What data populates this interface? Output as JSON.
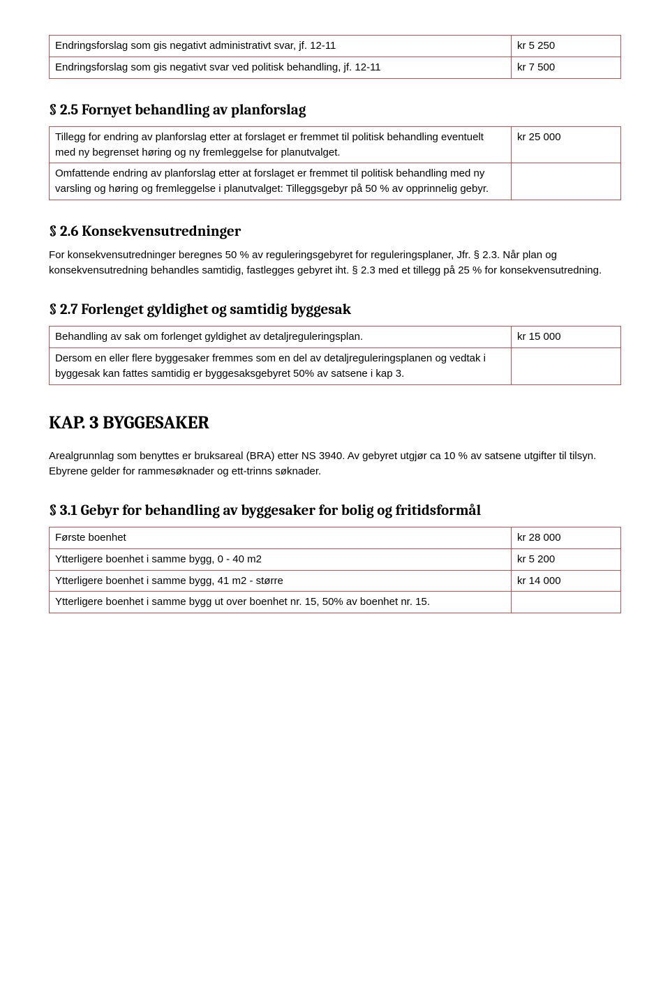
{
  "table1": {
    "rows": [
      {
        "label": "Endringsforslag som gis negativt administrativt svar, jf. 12-11",
        "value": "kr 5 250"
      },
      {
        "label": "Endringsforslag som gis negativt svar ved politisk behandling, jf. 12-11",
        "value": "kr 7 500"
      }
    ]
  },
  "sec25": {
    "heading": "§ 2.5 Fornyet behandling av planforslag",
    "rows": [
      {
        "label": "Tillegg for endring av planforslag etter at forslaget er fremmet til politisk behandling eventuelt med ny begrenset høring og ny fremleggelse for planutvalget.",
        "value": "kr 25 000"
      },
      {
        "label": "Omfattende endring av planforslag etter at forslaget er fremmet til politisk behandling med ny varsling og høring og fremleggelse i planutvalget: Tilleggsgebyr på 50 % av opprinnelig gebyr.",
        "value": ""
      }
    ]
  },
  "sec26": {
    "heading": "§ 2.6 Konsekvensutredninger",
    "body": "For konsekvensutredninger beregnes 50 % av reguleringsgebyret for reguleringsplaner, Jfr. § 2.3. Når plan og konsekvensutredning behandles samtidig, fastlegges gebyret iht. § 2.3 med et tillegg på 25 % for konsekvensutredning."
  },
  "sec27": {
    "heading": "§ 2.7 Forlenget gyldighet og samtidig byggesak",
    "rows": [
      {
        "label": "Behandling av sak om forlenget gyldighet av detaljreguleringsplan.",
        "value": "kr 15 000"
      },
      {
        "label": "Dersom en eller flere byggesaker fremmes som en del av detaljreguleringsplanen og vedtak i byggesak kan fattes samtidig er byggesaksgebyret 50% av satsene i kap 3.",
        "value": ""
      }
    ]
  },
  "chapter3": {
    "heading": "KAP. 3 BYGGESAKER",
    "intro": "Arealgrunnlag som benyttes er bruksareal (BRA) etter NS 3940. Av gebyret utgjør ca 10 % av satsene utgifter til tilsyn. Ebyrene gelder for rammesøknader og ett-trinns søknader."
  },
  "sec31": {
    "heading": "§ 3.1 Gebyr for behandling av byggesaker for bolig og fritidsformål",
    "rows": [
      {
        "label": "Første boenhet",
        "value": "kr 28 000"
      },
      {
        "label": "Ytterligere boenhet i samme bygg, 0 - 40 m2",
        "value": "kr 5 200"
      },
      {
        "label": "Ytterligere boenhet i samme bygg, 41 m2 - større",
        "value": "kr 14 000"
      },
      {
        "label": "Ytterligere boenhet i samme bygg ut over boenhet nr. 15, 50% av boenhet nr. 15.",
        "value": ""
      }
    ]
  }
}
